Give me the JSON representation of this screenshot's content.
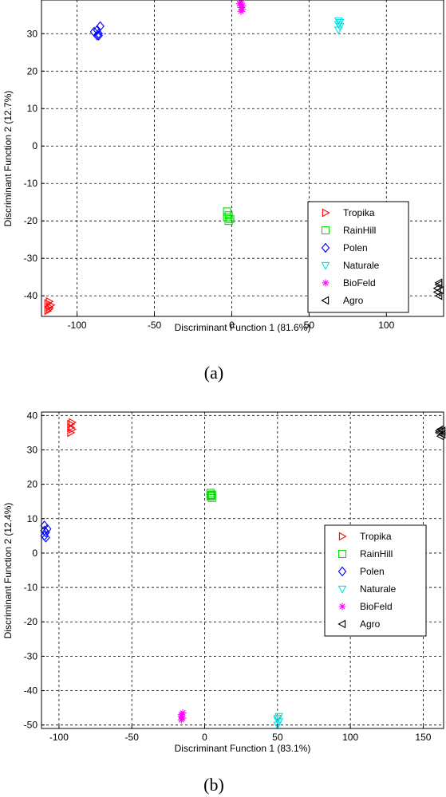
{
  "chart_data": [
    {
      "type": "scatter",
      "caption": "(a)",
      "xlabel": "Discriminant Function 1 (81.6%)",
      "ylabel": "Discriminant Function 2 (12.7%)",
      "xlim": [
        -123,
        137
      ],
      "ylim": [
        -45.5,
        39
      ],
      "xticks": [
        -100,
        -50,
        0,
        50,
        100
      ],
      "yticks": [
        -40,
        -30,
        -20,
        -10,
        0,
        10,
        20,
        30
      ],
      "grid": true,
      "legend_position": "bottom-right",
      "series": [
        {
          "name": "Tropika",
          "marker": "triangle-right",
          "color": "#ff0000",
          "points": [
            [
              -119,
              -42
            ],
            [
              -118,
              -43
            ],
            [
              -117,
              -42.5
            ],
            [
              -119,
              -44
            ],
            [
              -118,
              -41.5
            ],
            [
              -118,
              -43.5
            ]
          ]
        },
        {
          "name": "RainHill",
          "marker": "square",
          "color": "#00dd00",
          "points": [
            [
              -3,
              -17.5
            ],
            [
              -3,
              -19
            ],
            [
              -2,
              -18.5
            ],
            [
              -2,
              -20
            ],
            [
              -1,
              -19.5
            ]
          ]
        },
        {
          "name": "Polen",
          "marker": "diamond",
          "color": "#0000ff",
          "points": [
            [
              -89,
              30.5
            ],
            [
              -87,
              29.5
            ],
            [
              -86,
              30
            ],
            [
              -85,
              32
            ],
            [
              -87,
              31
            ],
            [
              -86,
              29.5
            ]
          ]
        },
        {
          "name": "Naturale",
          "marker": "triangle-down",
          "color": "#00e5e5",
          "points": [
            [
              69,
              33.5
            ],
            [
              70,
              32
            ],
            [
              69,
              31
            ],
            [
              70,
              33
            ],
            [
              69,
              32.5
            ]
          ]
        },
        {
          "name": "BioFeld",
          "marker": "asterisk",
          "color": "#ff00ff",
          "points": [
            [
              5,
              38
            ],
            [
              6,
              37
            ],
            [
              6,
              36
            ],
            [
              7,
              37.5
            ],
            [
              6,
              38.5
            ],
            [
              7,
              36.5
            ]
          ]
        },
        {
          "name": "Agro",
          "marker": "triangle-left",
          "color": "#000000",
          "points": [
            [
              133,
              -38
            ],
            [
              134,
              -37
            ],
            [
              133,
              -39
            ],
            [
              134,
              -40
            ],
            [
              135,
              -38.5
            ],
            [
              134,
              -36.5
            ]
          ]
        }
      ]
    },
    {
      "type": "scatter",
      "caption": "(b)",
      "xlabel": "Discriminant Function 1 (83.1%)",
      "ylabel": "Discriminant Function 2 (12.4%)",
      "xlim": [
        -112,
        164
      ],
      "ylim": [
        -51,
        41
      ],
      "xticks": [
        -100,
        -50,
        0,
        50,
        100,
        150
      ],
      "yticks": [
        -50,
        -40,
        -30,
        -20,
        -10,
        0,
        10,
        20,
        30,
        40
      ],
      "grid": true,
      "legend_position": "right",
      "series": [
        {
          "name": "Tropika",
          "marker": "triangle-right",
          "color": "#ff0000",
          "points": [
            [
              -92,
              37.5
            ],
            [
              -91,
              36
            ],
            [
              -92,
              35
            ],
            [
              -91,
              38
            ],
            [
              -92,
              36.5
            ]
          ]
        },
        {
          "name": "RainHill",
          "marker": "square",
          "color": "#00dd00",
          "points": [
            [
              4,
              16.5
            ],
            [
              5,
              17
            ],
            [
              4,
              17.5
            ],
            [
              5,
              16
            ],
            [
              4.5,
              16.8
            ]
          ]
        },
        {
          "name": "Polen",
          "marker": "diamond",
          "color": "#0000ff",
          "points": [
            [
              -110,
              8
            ],
            [
              -109,
              6
            ],
            [
              -110,
              5
            ],
            [
              -108,
              7
            ],
            [
              -109,
              4.5
            ],
            [
              -110,
              6.5
            ]
          ]
        },
        {
          "name": "Naturale",
          "marker": "triangle-down",
          "color": "#00e5e5",
          "points": [
            [
              50,
              -48
            ],
            [
              51,
              -49
            ],
            [
              50,
              -50
            ],
            [
              51,
              -47.5
            ],
            [
              50,
              -48.5
            ]
          ]
        },
        {
          "name": "BioFeld",
          "marker": "asterisk",
          "color": "#ff00ff",
          "points": [
            [
              -16,
              -47
            ],
            [
              -15,
              -48
            ],
            [
              -16,
              -48.5
            ],
            [
              -15,
              -46.5
            ],
            [
              -16,
              -47.5
            ]
          ]
        },
        {
          "name": "Agro",
          "marker": "triangle-left",
          "color": "#000000",
          "points": [
            [
              161,
              35
            ],
            [
              162,
              34
            ],
            [
              163,
              35.5
            ],
            [
              162,
              36
            ],
            [
              163,
              34.5
            ],
            [
              161,
              35.5
            ]
          ]
        }
      ]
    }
  ]
}
